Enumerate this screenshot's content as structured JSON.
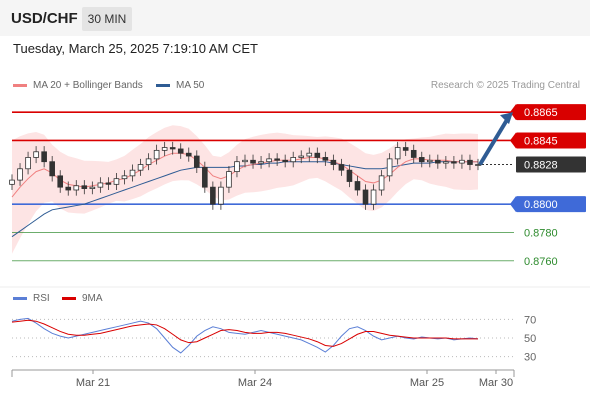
{
  "header": {
    "symbol": "USD/CHF",
    "timeframe": "30 MIN"
  },
  "date_line": "Tuesday, March 25, 2025 7:19:10 AM CET",
  "legend": [
    {
      "label": "MA 20 + Bollinger Bands",
      "color": "#f08080"
    },
    {
      "label": "MA 50",
      "color": "#2f5c94"
    }
  ],
  "credit": "Research © 2025 Trading Central",
  "rsi_legend": [
    {
      "label": "RSI",
      "color": "#5b7fd6"
    },
    {
      "label": "9MA",
      "color": "#d90000"
    }
  ],
  "chart_data": {
    "type": "line",
    "title": "",
    "instrument": "USD/CHF",
    "interval": "30 MIN",
    "x_ticks": [
      "Mar 21",
      "Mar 24",
      "Mar 25",
      "Mar 30"
    ],
    "y_range": [
      0.8745,
      0.8875
    ],
    "last_price": 0.8828,
    "levels": [
      {
        "label": "0.8865",
        "value": 0.8865,
        "kind": "resistance",
        "color": "#d90000"
      },
      {
        "label": "0.8845",
        "value": 0.8845,
        "kind": "resistance",
        "color": "#d90000"
      },
      {
        "label": "0.8800",
        "value": 0.88,
        "kind": "pivot",
        "color": "#3f6ad8"
      },
      {
        "label": "0.8780",
        "value": 0.878,
        "kind": "support",
        "color": "#2e8b2e"
      },
      {
        "label": "0.8760",
        "value": 0.876,
        "kind": "support",
        "color": "#2e8b2e"
      }
    ],
    "forecast_arrow": {
      "from": 0.8828,
      "to": 0.8865,
      "color": "#2f5c94"
    },
    "price_series": [
      0.8817,
      0.8825,
      0.8833,
      0.8837,
      0.883,
      0.882,
      0.8812,
      0.881,
      0.8813,
      0.8811,
      0.8812,
      0.8815,
      0.8814,
      0.8818,
      0.882,
      0.8824,
      0.8828,
      0.8832,
      0.8838,
      0.884,
      0.8839,
      0.8836,
      0.8834,
      0.8826,
      0.8812,
      0.88,
      0.8812,
      0.8823,
      0.883,
      0.8831,
      0.8829,
      0.883,
      0.8832,
      0.8831,
      0.883,
      0.8833,
      0.8834,
      0.8836,
      0.8833,
      0.8831,
      0.8828,
      0.8824,
      0.8816,
      0.881,
      0.88,
      0.881,
      0.882,
      0.8832,
      0.884,
      0.8838,
      0.8833,
      0.883,
      0.8831,
      0.8829,
      0.883,
      0.8829,
      0.8831,
      0.8828,
      0.8828
    ],
    "ma20_series": [
      0.8805,
      0.8812,
      0.8818,
      0.8823,
      0.8825,
      0.8822,
      0.8817,
      0.8814,
      0.8813,
      0.8812,
      0.8813,
      0.8814,
      0.8815,
      0.8817,
      0.8818,
      0.8821,
      0.8824,
      0.8828,
      0.8831,
      0.8834,
      0.8836,
      0.8836,
      0.8835,
      0.8831,
      0.8826,
      0.882,
      0.8818,
      0.882,
      0.8824,
      0.8827,
      0.8828,
      0.8829,
      0.883,
      0.8831,
      0.8831,
      0.8831,
      0.8832,
      0.8833,
      0.8833,
      0.8832,
      0.883,
      0.8828,
      0.8824,
      0.882,
      0.8816,
      0.8815,
      0.8817,
      0.8821,
      0.8826,
      0.883,
      0.8832,
      0.8832,
      0.8831,
      0.8831,
      0.8831,
      0.883,
      0.883,
      0.883,
      0.883
    ],
    "ma50_series": [
      0.8777,
      0.8781,
      0.8785,
      0.8789,
      0.8793,
      0.8796,
      0.8797,
      0.8798,
      0.8799,
      0.88,
      0.8802,
      0.8804,
      0.8806,
      0.8808,
      0.881,
      0.8812,
      0.8814,
      0.8816,
      0.8818,
      0.882,
      0.8822,
      0.8824,
      0.8825,
      0.8826,
      0.8826,
      0.8826,
      0.8826,
      0.8826,
      0.8827,
      0.8827,
      0.8828,
      0.8828,
      0.8829,
      0.8829,
      0.883,
      0.883,
      0.883,
      0.883,
      0.883,
      0.883,
      0.8829,
      0.8828,
      0.8827,
      0.8826,
      0.8825,
      0.8825,
      0.8825,
      0.8826,
      0.8827,
      0.8828,
      0.8829,
      0.8829,
      0.8829,
      0.883,
      0.883,
      0.883,
      0.883,
      0.883,
      0.883
    ],
    "rsi": {
      "y_range": [
        20,
        80
      ],
      "ticks": [
        70,
        50,
        30
      ],
      "rsi_series": [
        68,
        70,
        71,
        66,
        60,
        55,
        52,
        50,
        52,
        54,
        56,
        58,
        60,
        62,
        64,
        66,
        68,
        66,
        60,
        50,
        40,
        34,
        42,
        52,
        58,
        62,
        60,
        56,
        55,
        54,
        56,
        58,
        56,
        54,
        52,
        50,
        48,
        44,
        40,
        35,
        42,
        52,
        60,
        62,
        58,
        52,
        48,
        50,
        52,
        50,
        49,
        51,
        50,
        49,
        50,
        48,
        49,
        50,
        49
      ],
      "ma9_series": [
        67,
        68,
        69,
        68,
        65,
        61,
        57,
        54,
        53,
        53,
        54,
        55,
        57,
        59,
        61,
        63,
        64,
        65,
        64,
        60,
        54,
        48,
        45,
        46,
        50,
        54,
        58,
        59,
        58,
        56,
        55,
        55,
        56,
        56,
        55,
        53,
        51,
        49,
        46,
        42,
        41,
        44,
        49,
        54,
        57,
        57,
        55,
        53,
        52,
        51,
        50,
        50,
        50,
        50,
        50,
        49,
        49,
        49,
        49
      ]
    }
  }
}
